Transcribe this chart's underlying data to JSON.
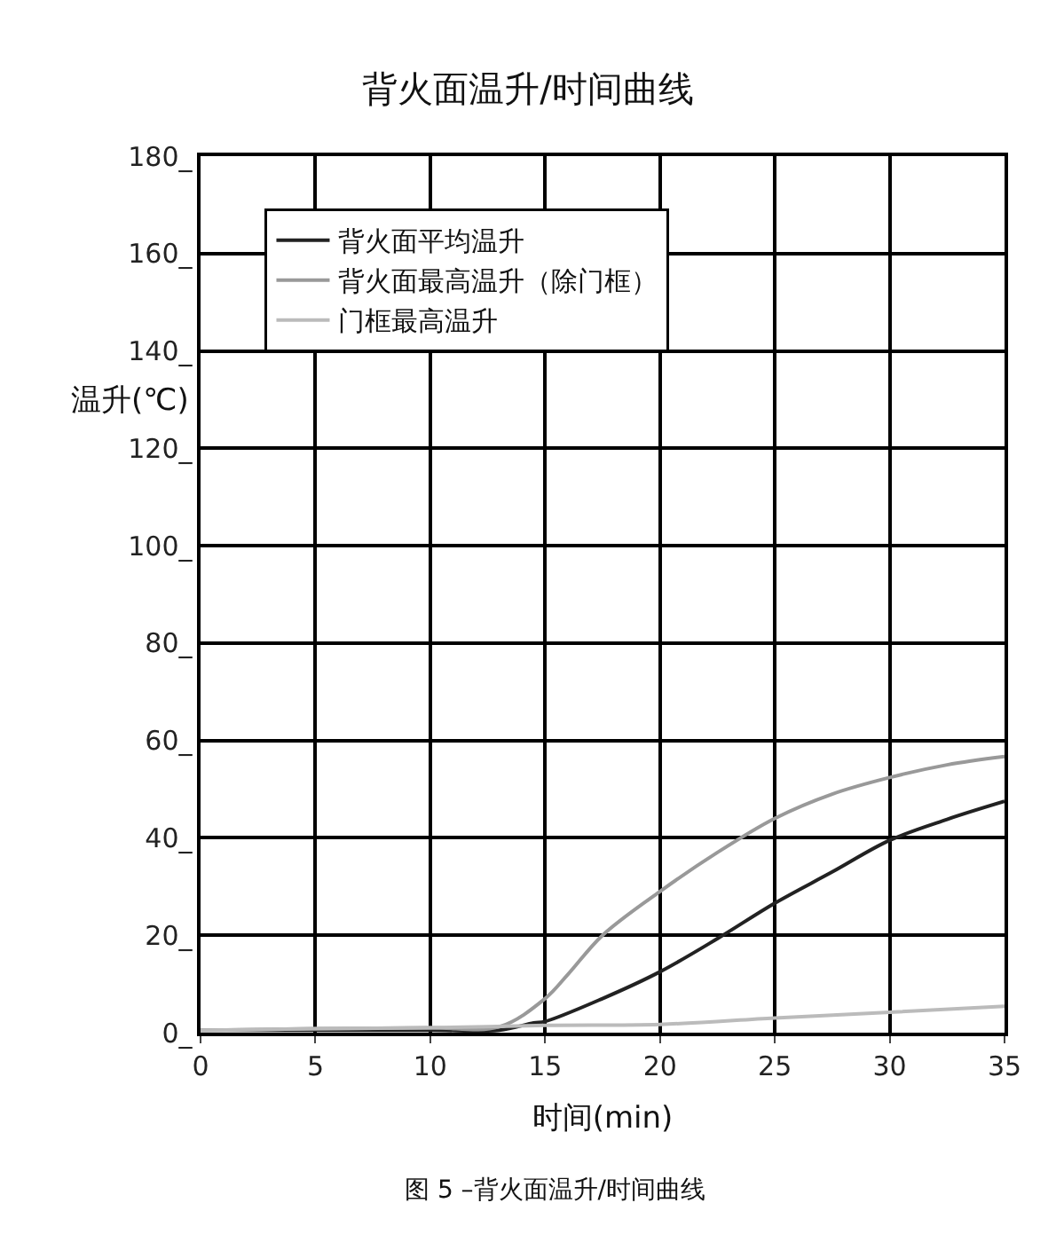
{
  "chart_data": {
    "type": "line",
    "title": "背火面温升/时间曲线",
    "xlabel": "时间(min)",
    "ylabel": "温升(℃)",
    "annotations": [
      "图 5 –背火面温升/时间曲线"
    ],
    "xlim": [
      0,
      35
    ],
    "xticks": [
      0,
      5,
      10,
      15,
      20,
      25,
      30,
      35
    ],
    "ylim": [
      0,
      180
    ],
    "yticks": [
      {
        "value": 0,
        "label": "0_"
      },
      {
        "value": 20,
        "label": "20_"
      },
      {
        "value": 40,
        "label": "40_"
      },
      {
        "value": 60,
        "label": "60_"
      },
      {
        "value": 80,
        "label": "80_"
      },
      {
        "value": 100,
        "label": "100_"
      },
      {
        "value": 120,
        "label": "120_"
      },
      {
        "value": 140,
        "label": "140_"
      },
      {
        "value": 160,
        "label": "160_"
      },
      {
        "value": 180,
        "label": "180_"
      }
    ],
    "grid": true,
    "legend": "top left",
    "marker": "none",
    "line_style": "solid",
    "series": [
      {
        "name": "背火面平均温升",
        "color": "#222222",
        "x": [
          0,
          5,
          10,
          13,
          14.5,
          15,
          17.5,
          20,
          22.5,
          25,
          27.5,
          30,
          32.5,
          35
        ],
        "values": [
          0.5,
          0.5,
          0.5,
          0.5,
          2,
          2.3,
          7,
          12.5,
          19.3,
          26.6,
          33,
          39.5,
          43.8,
          47.5
        ]
      },
      {
        "name": "背火面最高温升（除门框）",
        "color": "#999999",
        "x": [
          0,
          5,
          10,
          13,
          15,
          16,
          17.5,
          20,
          22.5,
          25,
          27.5,
          30,
          32.5,
          35
        ],
        "values": [
          0.5,
          0.8,
          1,
          1.2,
          7,
          12,
          20,
          29,
          37,
          44,
          49,
          52.4,
          55,
          56.7
        ]
      },
      {
        "name": "门框最高温升",
        "color": "#bbbbbb",
        "x": [
          0,
          5,
          10,
          15,
          20,
          25,
          30,
          35
        ],
        "values": [
          0.5,
          0.8,
          1,
          1.5,
          1.7,
          3,
          4.2,
          5.4
        ]
      }
    ]
  }
}
